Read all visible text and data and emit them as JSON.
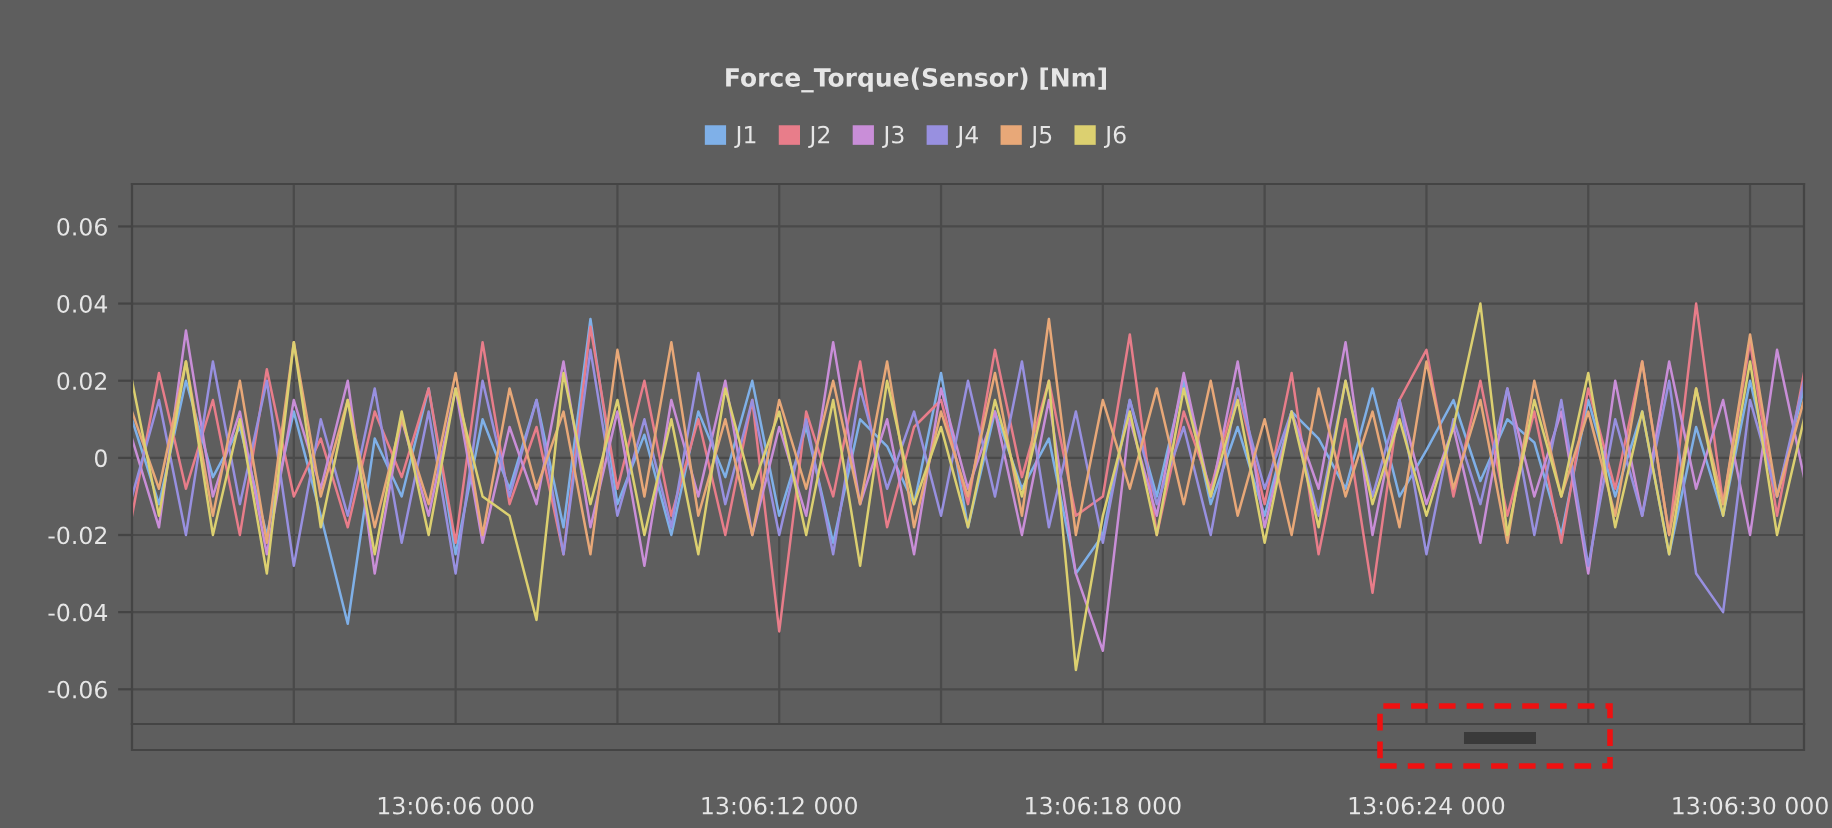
{
  "chart_data": {
    "type": "line",
    "title": "Force_Torque(Sensor) [Nm]",
    "categories": [
      null,
      null,
      null,
      null,
      null,
      null,
      null,
      null,
      null,
      null,
      null,
      null,
      "13:06:06 000",
      null,
      null,
      null,
      null,
      null,
      null,
      null,
      null,
      null,
      null,
      null,
      "13:06:12 000",
      null,
      null,
      null,
      null,
      null,
      null,
      null,
      null,
      null,
      null,
      null,
      "13:06:18 000",
      null,
      null,
      null,
      null,
      null,
      null,
      null,
      null,
      null,
      null,
      null,
      "13:06:24 000",
      null,
      null,
      null,
      null,
      null,
      null,
      null,
      null,
      null,
      null,
      null,
      "13:06:30 000",
      null,
      null
    ],
    "series": [
      {
        "name": "J1",
        "color": "#7fb0e8",
        "values": [
          0.01,
          -0.012,
          0.02,
          -0.005,
          0.008,
          -0.02,
          0.012,
          -0.015,
          -0.043,
          0.005,
          -0.01,
          0.018,
          -0.025,
          0.01,
          -0.008,
          0.015,
          -0.018,
          0.036,
          -0.012,
          0.006,
          -0.02,
          0.012,
          -0.005,
          0.02,
          -0.015,
          0.008,
          -0.022,
          0.01,
          0.003,
          -0.012,
          0.022,
          -0.018,
          0.012,
          -0.008,
          0.005,
          -0.03,
          -0.02,
          0.015,
          -0.01,
          0.02,
          -0.012,
          0.008,
          -0.015,
          0.012,
          0.005,
          -0.008,
          0.018,
          -0.01,
          0.002,
          0.015,
          -0.006,
          0.01,
          0.004,
          -0.02,
          0.015,
          -0.01,
          0.012,
          -0.025,
          0.008,
          -0.015,
          0.02,
          -0.01,
          0.018
        ]
      },
      {
        "name": "J2",
        "color": "#e87d8a",
        "values": [
          -0.015,
          0.022,
          -0.008,
          0.015,
          -0.02,
          0.023,
          -0.01,
          0.005,
          -0.018,
          0.012,
          -0.005,
          0.018,
          -0.022,
          0.03,
          -0.012,
          0.008,
          -0.025,
          0.034,
          -0.008,
          0.02,
          -0.015,
          0.01,
          -0.02,
          0.015,
          -0.045,
          0.012,
          -0.01,
          0.025,
          -0.018,
          0.008,
          0.015,
          -0.012,
          0.028,
          -0.005,
          0.02,
          -0.015,
          -0.01,
          0.032,
          -0.02,
          0.012,
          -0.008,
          0.018,
          -0.012,
          0.022,
          -0.025,
          0.01,
          -0.035,
          0.015,
          0.028,
          -0.01,
          0.02,
          -0.015,
          0.012,
          -0.022,
          0.018,
          -0.008,
          0.025,
          -0.02,
          0.04,
          -0.012,
          0.03,
          -0.015,
          0.022
        ]
      },
      {
        "name": "J3",
        "color": "#c98ed8",
        "values": [
          0.005,
          -0.018,
          0.033,
          -0.01,
          0.012,
          -0.025,
          0.015,
          -0.008,
          0.02,
          -0.03,
          0.01,
          -0.015,
          0.018,
          -0.022,
          0.008,
          -0.012,
          0.025,
          -0.018,
          0.012,
          -0.028,
          0.015,
          -0.01,
          0.02,
          -0.02,
          0.008,
          -0.015,
          0.03,
          -0.012,
          0.01,
          -0.025,
          0.018,
          -0.008,
          0.012,
          -0.02,
          0.015,
          -0.03,
          -0.05,
          0.01,
          -0.015,
          0.022,
          -0.01,
          0.025,
          -0.018,
          0.012,
          -0.008,
          0.03,
          -0.02,
          0.015,
          -0.012,
          0.008,
          -0.022,
          0.018,
          -0.01,
          0.012,
          -0.03,
          0.02,
          -0.015,
          0.025,
          -0.008,
          0.015,
          -0.02,
          0.028,
          -0.005
        ]
      },
      {
        "name": "J4",
        "color": "#9890e0",
        "values": [
          -0.01,
          0.015,
          -0.02,
          0.025,
          -0.012,
          0.02,
          -0.028,
          0.01,
          -0.015,
          0.018,
          -0.022,
          0.012,
          -0.03,
          0.02,
          -0.01,
          0.015,
          -0.025,
          0.028,
          -0.015,
          0.01,
          -0.018,
          0.022,
          -0.012,
          0.015,
          -0.02,
          0.01,
          -0.025,
          0.018,
          -0.008,
          0.012,
          -0.015,
          0.02,
          -0.01,
          0.025,
          -0.018,
          0.012,
          -0.022,
          0.015,
          -0.012,
          0.008,
          -0.02,
          0.018,
          -0.008,
          0.012,
          -0.015,
          0.02,
          -0.01,
          0.015,
          -0.025,
          0.01,
          -0.012,
          0.018,
          -0.02,
          0.015,
          -0.028,
          0.01,
          -0.015,
          0.02,
          -0.03,
          -0.04,
          0.015,
          -0.01,
          0.02
        ]
      },
      {
        "name": "J5",
        "color": "#e8a878",
        "values": [
          0.012,
          -0.008,
          0.025,
          -0.015,
          0.02,
          -0.022,
          0.03,
          -0.01,
          0.015,
          -0.018,
          0.01,
          -0.012,
          0.022,
          -0.02,
          0.018,
          -0.008,
          0.012,
          -0.025,
          0.028,
          -0.01,
          0.03,
          -0.015,
          0.01,
          -0.02,
          0.015,
          -0.008,
          0.02,
          -0.012,
          0.025,
          -0.018,
          0.012,
          -0.01,
          0.022,
          -0.015,
          0.036,
          -0.02,
          0.015,
          -0.008,
          0.018,
          -0.012,
          0.02,
          -0.015,
          0.01,
          -0.02,
          0.018,
          -0.01,
          0.012,
          -0.018,
          0.025,
          -0.008,
          0.015,
          -0.022,
          0.02,
          -0.01,
          0.012,
          -0.015,
          0.025,
          -0.02,
          0.018,
          -0.012,
          0.032,
          -0.01,
          0.015
        ]
      },
      {
        "name": "J6",
        "color": "#dcd070",
        "values": [
          0.02,
          -0.015,
          0.025,
          -0.02,
          0.01,
          -0.03,
          0.03,
          -0.018,
          0.015,
          -0.025,
          0.012,
          -0.02,
          0.018,
          -0.01,
          -0.015,
          -0.042,
          0.022,
          -0.012,
          0.015,
          -0.02,
          0.01,
          -0.025,
          0.018,
          -0.008,
          0.012,
          -0.02,
          0.015,
          -0.028,
          0.02,
          -0.012,
          0.008,
          -0.018,
          0.015,
          -0.01,
          0.02,
          -0.055,
          -0.015,
          0.012,
          -0.02,
          0.018,
          -0.01,
          0.015,
          -0.022,
          0.012,
          -0.018,
          0.02,
          -0.012,
          0.01,
          -0.015,
          0.008,
          0.04,
          -0.02,
          0.015,
          -0.01,
          0.022,
          -0.018,
          0.012,
          -0.025,
          0.018,
          -0.015,
          0.025,
          -0.02,
          0.01
        ]
      }
    ],
    "ylim": [
      -0.069,
      0.071
    ],
    "yticks": [
      {
        "value": -0.06,
        "label": "-0.06"
      },
      {
        "value": -0.04,
        "label": "-0.04"
      },
      {
        "value": -0.02,
        "label": "-0.02"
      },
      0,
      {
        "value": 0.02,
        "label": "0.02"
      },
      {
        "value": 0.04,
        "label": "0.04"
      },
      {
        "value": 0.06,
        "label": "0.06"
      }
    ],
    "grid": true,
    "legend": "top",
    "marker": "none",
    "line_style": "solid"
  }
}
